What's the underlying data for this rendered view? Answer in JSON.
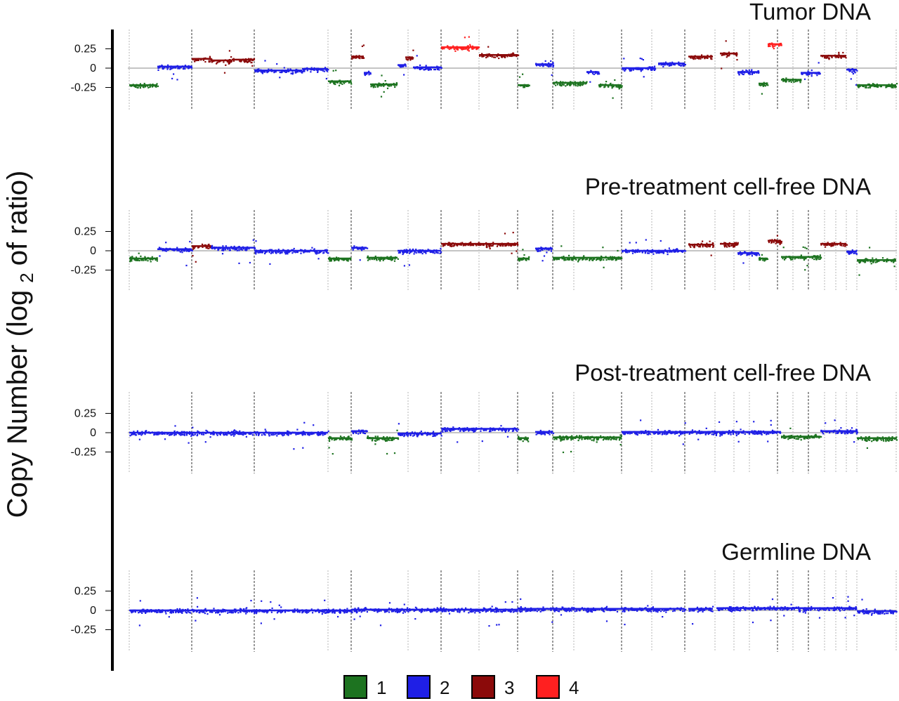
{
  "chart_data": {
    "type": "scatter",
    "ylabel": {
      "before": "Copy Number (log",
      "subscript": "2",
      "after": "of ratio)"
    },
    "ylim": [
      -0.45,
      0.42
    ],
    "y_ticks": [
      {
        "value": 0.25,
        "label": "0.25"
      },
      {
        "value": 0,
        "label": "0"
      },
      {
        "value": -0.25,
        "label": "-0.25"
      }
    ],
    "grid": false,
    "baseline_value": 0,
    "legend": {
      "placement": "bottom-center",
      "entries": [
        {
          "label": "1",
          "color": "#1d7320"
        },
        {
          "label": "2",
          "color": "#1f1fe6"
        },
        {
          "label": "3",
          "color": "#8b0a0a"
        },
        {
          "label": "4",
          "color": "#ff2020"
        }
      ]
    },
    "colors": {
      "1": "#1d7320",
      "2": "#1f1fe6",
      "3": "#8b0a0a",
      "4": "#ff2020"
    },
    "chromosome_boundaries": {
      "major": [
        273,
        362,
        500,
        628,
        737,
        787,
        885,
        975,
        1107,
        1151
      ],
      "minor": [
        184,
        467,
        581,
        682,
        817,
        928,
        1018,
        1045,
        1067,
        1129,
        1174,
        1190,
        1205,
        1220,
        1276
      ]
    },
    "panels": [
      {
        "title": "Tumor DNA",
        "segments": [
          {
            "x_start": 184,
            "x_end": 224,
            "value": -0.22,
            "state": "1"
          },
          {
            "x_start": 224,
            "x_end": 273,
            "value": 0.02,
            "state": "2"
          },
          {
            "x_start": 273,
            "x_end": 300,
            "value": 0.12,
            "state": "3"
          },
          {
            "x_start": 300,
            "x_end": 330,
            "value": 0.1,
            "state": "3"
          },
          {
            "x_start": 330,
            "x_end": 362,
            "value": 0.11,
            "state": "3"
          },
          {
            "x_start": 362,
            "x_end": 430,
            "value": -0.03,
            "state": "2"
          },
          {
            "x_start": 430,
            "x_end": 467,
            "value": -0.01,
            "state": "2"
          },
          {
            "x_start": 467,
            "x_end": 500,
            "value": -0.17,
            "state": "1"
          },
          {
            "x_start": 500,
            "x_end": 518,
            "value": 0.15,
            "state": "3"
          },
          {
            "x_start": 518,
            "x_end": 527,
            "value": -0.06,
            "state": "2"
          },
          {
            "x_start": 527,
            "x_end": 566,
            "value": -0.21,
            "state": "1"
          },
          {
            "x_start": 566,
            "x_end": 577,
            "value": 0.04,
            "state": "2"
          },
          {
            "x_start": 577,
            "x_end": 588,
            "value": 0.14,
            "state": "3"
          },
          {
            "x_start": 588,
            "x_end": 628,
            "value": 0.01,
            "state": "2"
          },
          {
            "x_start": 628,
            "x_end": 682,
            "value": 0.27,
            "state": "4"
          },
          {
            "x_start": 682,
            "x_end": 737,
            "value": 0.17,
            "state": "3"
          },
          {
            "x_start": 737,
            "x_end": 753,
            "value": -0.22,
            "state": "1"
          },
          {
            "x_start": 762,
            "x_end": 787,
            "value": 0.05,
            "state": "2"
          },
          {
            "x_start": 787,
            "x_end": 835,
            "value": -0.19,
            "state": "1"
          },
          {
            "x_start": 835,
            "x_end": 852,
            "value": -0.05,
            "state": "2"
          },
          {
            "x_start": 852,
            "x_end": 885,
            "value": -0.22,
            "state": "1"
          },
          {
            "x_start": 885,
            "x_end": 932,
            "value": 0.0,
            "state": "2"
          },
          {
            "x_start": 937,
            "x_end": 975,
            "value": 0.06,
            "state": "2"
          },
          {
            "x_start": 980,
            "x_end": 1015,
            "value": 0.15,
            "state": "3"
          },
          {
            "x_start": 1025,
            "x_end": 1050,
            "value": 0.19,
            "state": "3"
          },
          {
            "x_start": 1050,
            "x_end": 1080,
            "value": -0.05,
            "state": "2"
          },
          {
            "x_start": 1080,
            "x_end": 1093,
            "value": -0.2,
            "state": "1"
          },
          {
            "x_start": 1093,
            "x_end": 1112,
            "value": 0.31,
            "state": "4"
          },
          {
            "x_start": 1112,
            "x_end": 1140,
            "value": -0.15,
            "state": "1"
          },
          {
            "x_start": 1140,
            "x_end": 1168,
            "value": -0.06,
            "state": "2"
          },
          {
            "x_start": 1168,
            "x_end": 1205,
            "value": 0.16,
            "state": "3"
          },
          {
            "x_start": 1205,
            "x_end": 1220,
            "value": -0.02,
            "state": "2"
          },
          {
            "x_start": 1220,
            "x_end": 1276,
            "value": -0.22,
            "state": "1"
          }
        ]
      },
      {
        "title": "Pre-treatment cell-free DNA",
        "segments": [
          {
            "x_start": 184,
            "x_end": 224,
            "value": -0.1,
            "state": "1"
          },
          {
            "x_start": 224,
            "x_end": 273,
            "value": 0.02,
            "state": "2"
          },
          {
            "x_start": 273,
            "x_end": 300,
            "value": 0.06,
            "state": "3"
          },
          {
            "x_start": 300,
            "x_end": 362,
            "value": 0.04,
            "state": "2"
          },
          {
            "x_start": 362,
            "x_end": 467,
            "value": 0.0,
            "state": "2"
          },
          {
            "x_start": 467,
            "x_end": 500,
            "value": -0.1,
            "state": "1"
          },
          {
            "x_start": 500,
            "x_end": 522,
            "value": 0.04,
            "state": "2"
          },
          {
            "x_start": 522,
            "x_end": 566,
            "value": -0.09,
            "state": "1"
          },
          {
            "x_start": 566,
            "x_end": 628,
            "value": 0.0,
            "state": "2"
          },
          {
            "x_start": 628,
            "x_end": 737,
            "value": 0.09,
            "state": "3"
          },
          {
            "x_start": 737,
            "x_end": 753,
            "value": -0.1,
            "state": "1"
          },
          {
            "x_start": 762,
            "x_end": 787,
            "value": 0.03,
            "state": "2"
          },
          {
            "x_start": 787,
            "x_end": 885,
            "value": -0.09,
            "state": "1"
          },
          {
            "x_start": 885,
            "x_end": 975,
            "value": 0.0,
            "state": "2"
          },
          {
            "x_start": 980,
            "x_end": 1015,
            "value": 0.08,
            "state": "3"
          },
          {
            "x_start": 1025,
            "x_end": 1050,
            "value": 0.09,
            "state": "3"
          },
          {
            "x_start": 1050,
            "x_end": 1080,
            "value": -0.03,
            "state": "2"
          },
          {
            "x_start": 1080,
            "x_end": 1093,
            "value": -0.1,
            "state": "1"
          },
          {
            "x_start": 1093,
            "x_end": 1112,
            "value": 0.13,
            "state": "3"
          },
          {
            "x_start": 1112,
            "x_end": 1168,
            "value": -0.08,
            "state": "1"
          },
          {
            "x_start": 1168,
            "x_end": 1205,
            "value": 0.09,
            "state": "3"
          },
          {
            "x_start": 1205,
            "x_end": 1220,
            "value": -0.01,
            "state": "2"
          },
          {
            "x_start": 1220,
            "x_end": 1276,
            "value": -0.12,
            "state": "1"
          }
        ]
      },
      {
        "title": "Post-treatment cell-free DNA",
        "segments": [
          {
            "x_start": 184,
            "x_end": 467,
            "value": 0.0,
            "state": "2"
          },
          {
            "x_start": 467,
            "x_end": 500,
            "value": -0.07,
            "state": "1"
          },
          {
            "x_start": 500,
            "x_end": 522,
            "value": 0.02,
            "state": "2"
          },
          {
            "x_start": 522,
            "x_end": 566,
            "value": -0.07,
            "state": "1"
          },
          {
            "x_start": 566,
            "x_end": 628,
            "value": -0.01,
            "state": "2"
          },
          {
            "x_start": 628,
            "x_end": 737,
            "value": 0.05,
            "state": "2"
          },
          {
            "x_start": 737,
            "x_end": 753,
            "value": -0.07,
            "state": "1"
          },
          {
            "x_start": 762,
            "x_end": 787,
            "value": 0.01,
            "state": "2"
          },
          {
            "x_start": 787,
            "x_end": 885,
            "value": -0.06,
            "state": "1"
          },
          {
            "x_start": 885,
            "x_end": 1112,
            "value": 0.01,
            "state": "2"
          },
          {
            "x_start": 1112,
            "x_end": 1168,
            "value": -0.05,
            "state": "1"
          },
          {
            "x_start": 1168,
            "x_end": 1220,
            "value": 0.02,
            "state": "2"
          },
          {
            "x_start": 1220,
            "x_end": 1276,
            "value": -0.07,
            "state": "1"
          }
        ]
      },
      {
        "title": "Germline DNA",
        "segments": [
          {
            "x_start": 184,
            "x_end": 500,
            "value": 0.0,
            "state": "2"
          },
          {
            "x_start": 500,
            "x_end": 737,
            "value": 0.01,
            "state": "2"
          },
          {
            "x_start": 737,
            "x_end": 975,
            "value": 0.02,
            "state": "2"
          },
          {
            "x_start": 980,
            "x_end": 1015,
            "value": 0.02,
            "state": "2"
          },
          {
            "x_start": 1020,
            "x_end": 1220,
            "value": 0.03,
            "state": "2"
          },
          {
            "x_start": 1220,
            "x_end": 1276,
            "value": -0.01,
            "state": "2"
          }
        ]
      }
    ]
  }
}
